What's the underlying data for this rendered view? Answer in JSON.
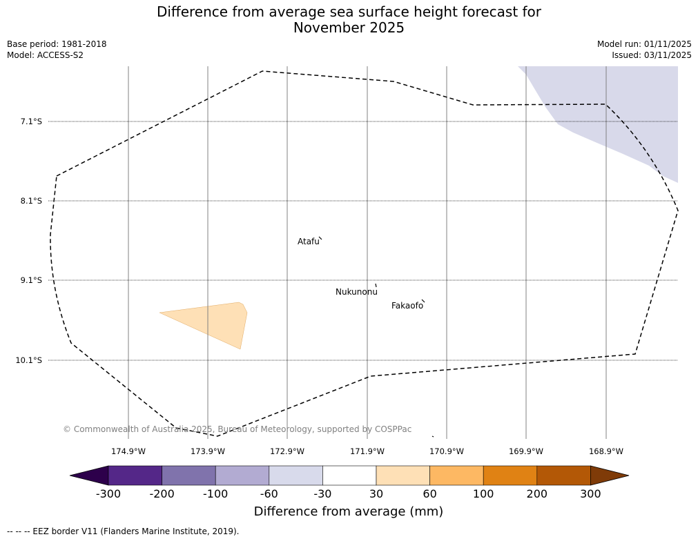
{
  "header": {
    "title_line1": "Difference from average sea surface height forecast for",
    "title_line2": "November 2025",
    "base_period": "Base period: 1981-2018",
    "model": "Model: ACCESS-S2",
    "model_run": "Model run: 01/11/2025",
    "issued": "Issued: 03/11/2025"
  },
  "map": {
    "latitude_labels": [
      "7.1°S",
      "8.1°S",
      "9.1°S",
      "10.1°S"
    ],
    "longitude_labels": [
      "174.9°W",
      "173.9°W",
      "172.9°W",
      "171.9°W",
      "170.9°W",
      "169.9°W",
      "168.9°W"
    ],
    "islands": [
      "Atafu",
      "Nukunonu",
      "Fakaofo"
    ],
    "copyright": "© Commonwealth of Australia 2025, Bureau of Meteorology, supported by COSPPac",
    "anomaly_regions": [
      {
        "name": "negative-anomaly-region",
        "bin": "-60 to -30",
        "color": "#d8d9ea"
      },
      {
        "name": "positive-anomaly-region",
        "bin": "30 to 60",
        "color": "#fee0b6"
      }
    ]
  },
  "colorbar": {
    "title": "Difference from average (mm)",
    "ticks": [
      "-300",
      "-200",
      "-100",
      "-60",
      "-30",
      "30",
      "60",
      "100",
      "200",
      "300"
    ],
    "colors": [
      "#542788",
      "#8073ac",
      "#b2abd2",
      "#d8daeb",
      "#ffffff",
      "#fee0b6",
      "#fdb863",
      "#e08214",
      "#b35806"
    ],
    "under_color": "#2d004b",
    "over_color": "#7f3b08"
  },
  "footnote": "--  --  -- EEZ border V11 (Flanders Marine Institute, 2019)."
}
